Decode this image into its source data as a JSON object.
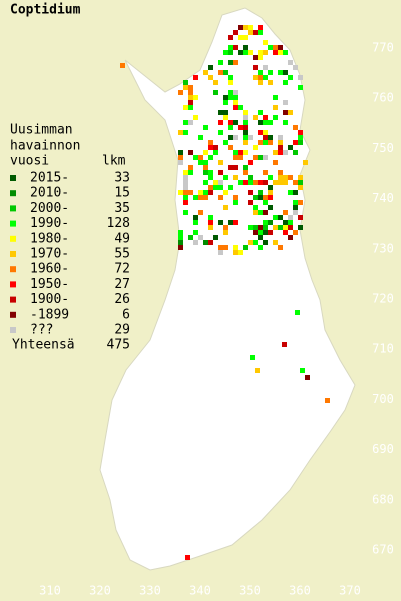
{
  "title": "Coptidium",
  "legend": {
    "heading": [
      "Uusimman",
      "havainnon",
      "vuosi"
    ],
    "count_heading": "lkm",
    "rows": [
      {
        "label": "2015-",
        "count": "33",
        "color": "#005a00"
      },
      {
        "label": "2010-",
        "count": "15",
        "color": "#008c00"
      },
      {
        "label": "2000-",
        "count": "35",
        "color": "#00c800"
      },
      {
        "label": "1990-",
        "count": "128",
        "color": "#00ff00"
      },
      {
        "label": "1980-",
        "count": "49",
        "color": "#ffff00"
      },
      {
        "label": "1970-",
        "count": "55",
        "color": "#ffc800"
      },
      {
        "label": "1960-",
        "count": "72",
        "color": "#ff7800"
      },
      {
        "label": "1950-",
        "count": "27",
        "color": "#ff0000"
      },
      {
        "label": "1900-",
        "count": "26",
        "color": "#c80000"
      },
      {
        "label": "-1899",
        "count": "6",
        "color": "#820000"
      },
      {
        "label": "???",
        "count": "29",
        "color": "#c8c8c8"
      }
    ],
    "total": {
      "label": "Yhteensä",
      "count": "475"
    }
  },
  "x_axis_labels": [
    "310",
    "320",
    "330",
    "340",
    "350",
    "360",
    "370"
  ],
  "y_axis_labels": [
    "770",
    "760",
    "750",
    "740",
    "730",
    "720",
    "710",
    "700",
    "690",
    "680",
    "670"
  ]
}
